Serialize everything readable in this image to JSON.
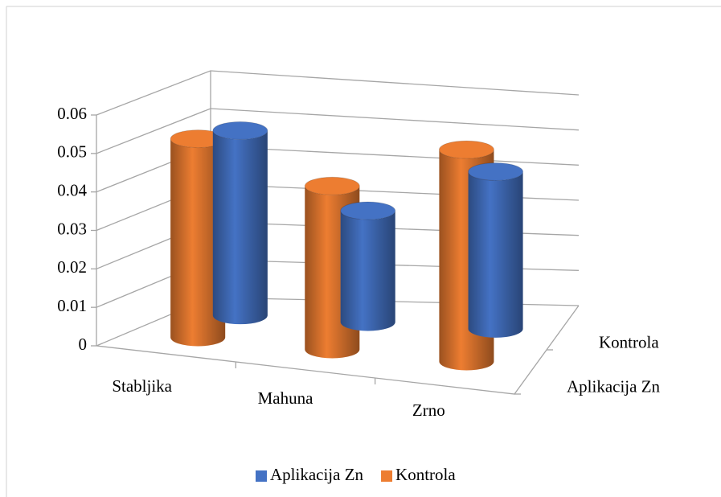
{
  "chart_data": {
    "type": "bar3d_cylinder",
    "categories": [
      "Stabljika",
      "Mahuna",
      "Zrno"
    ],
    "series": [
      {
        "name": "Aplikacija Zn",
        "color": "#4472c4",
        "values": [
          0.049,
          0.03,
          0.043
        ]
      },
      {
        "name": "Kontrola",
        "color": "#ed7d31",
        "values": [
          0.052,
          0.043,
          0.056
        ]
      }
    ],
    "ylim": [
      0,
      0.06
    ],
    "yticks": [
      0,
      0.01,
      0.02,
      0.03,
      0.04,
      0.05,
      0.06
    ],
    "grid": true,
    "legend": "bottom"
  }
}
